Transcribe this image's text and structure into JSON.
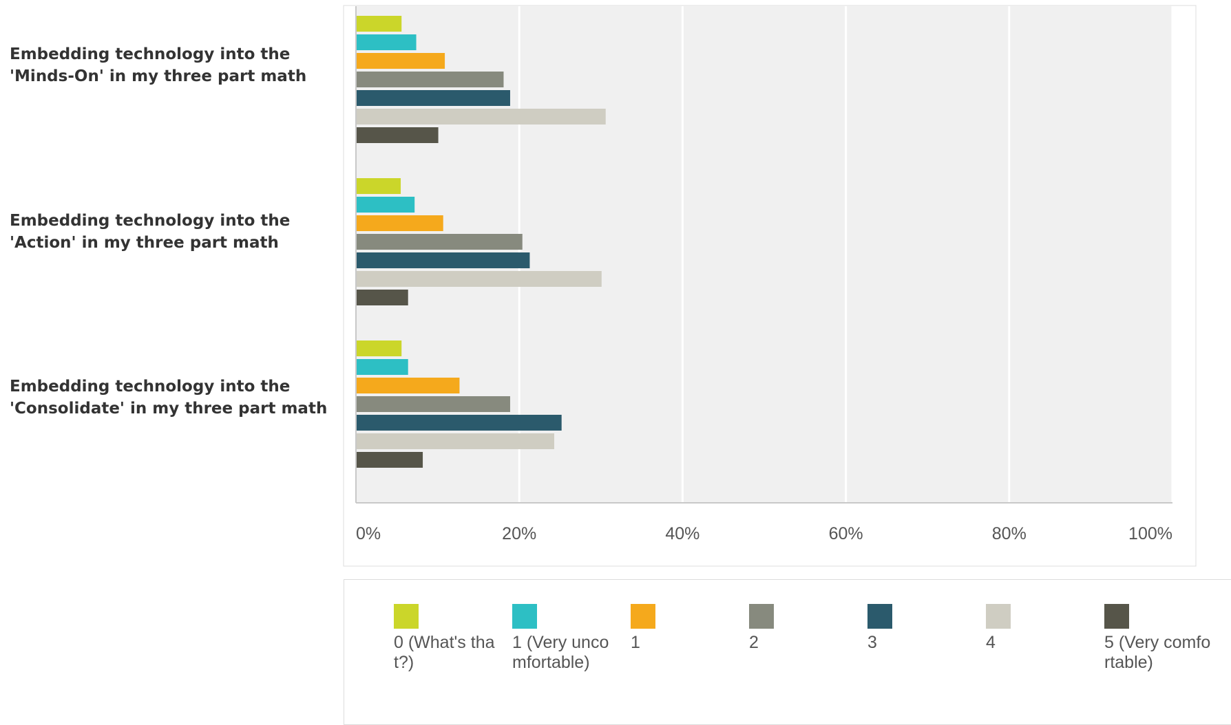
{
  "chart_data": {
    "type": "bar",
    "orientation": "horizontal",
    "categories": [
      "Embedding technology into the\n'Minds-On' in my three part math",
      "Embedding technology into the\n'Action' in my three part math",
      "Embedding technology into the\n'Consolidate' in my three part math"
    ],
    "series": [
      {
        "name": "0 (What's that?)",
        "color": "#cbd62a",
        "values": [
          5.5,
          5.4,
          5.5
        ]
      },
      {
        "name": "1 (Very uncomfortable)",
        "color": "#2dbfc4",
        "values": [
          7.3,
          7.1,
          6.3
        ]
      },
      {
        "name": "1",
        "color": "#f5a91c",
        "values": [
          10.8,
          10.6,
          12.6
        ]
      },
      {
        "name": "2",
        "color": "#878a7e",
        "values": [
          18.0,
          20.3,
          18.8
        ]
      },
      {
        "name": "3",
        "color": "#2b5a6c",
        "values": [
          18.8,
          21.2,
          25.1
        ]
      },
      {
        "name": "4",
        "color": "#cfcdc2",
        "values": [
          30.5,
          30.0,
          24.2
        ]
      },
      {
        "name": "5 (Very comfortable)",
        "color": "#565549",
        "values": [
          10.0,
          6.3,
          8.1
        ]
      }
    ],
    "x_ticks": [
      "0%",
      "20%",
      "40%",
      "60%",
      "80%",
      "100%"
    ],
    "xlim": [
      0,
      100
    ],
    "grid": true,
    "legend_position": "bottom"
  }
}
